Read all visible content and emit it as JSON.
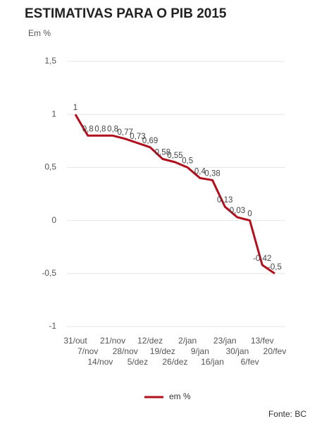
{
  "chart_data": {
    "type": "line",
    "title": "ESTIMATIVAS PARA O PIB 2015",
    "subtitle": "Em %",
    "source": "Fonte: BC",
    "categories": [
      "31/out",
      "7/nov",
      "14/nov",
      "21/nov",
      "28/nov",
      "5/dez",
      "12/dez",
      "19/dez",
      "26/dez",
      "2/jan",
      "9/jan",
      "16/jan",
      "23/jan",
      "30/jan",
      "6/fev",
      "13/fev",
      "20/fev"
    ],
    "series": [
      {
        "name": "em %",
        "color": "#b0101e",
        "values": [
          1,
          0.8,
          0.8,
          0.8,
          0.77,
          0.73,
          0.69,
          0.58,
          0.55,
          0.5,
          0.4,
          0.38,
          0.13,
          0.03,
          0,
          -0.42,
          -0.5
        ],
        "value_labels": [
          "1",
          "0,8",
          "0,8",
          "0,8",
          "0,77",
          "0,73",
          "0,69",
          "0,58",
          "0,55",
          "0,5",
          "0,4",
          "0,38",
          "0,13",
          "0,03",
          "0",
          "-0,42",
          "-0,5"
        ]
      }
    ],
    "ylim": [
      -1,
      1.5
    ],
    "yticks": [
      {
        "value": -1,
        "label": "-1"
      },
      {
        "value": -0.5,
        "label": "-0,5"
      },
      0,
      {
        "value": 0.5,
        "label": "0,5"
      },
      1,
      {
        "value": 1.5,
        "label": "1,5"
      }
    ],
    "grid": true,
    "legend": "bottom"
  }
}
